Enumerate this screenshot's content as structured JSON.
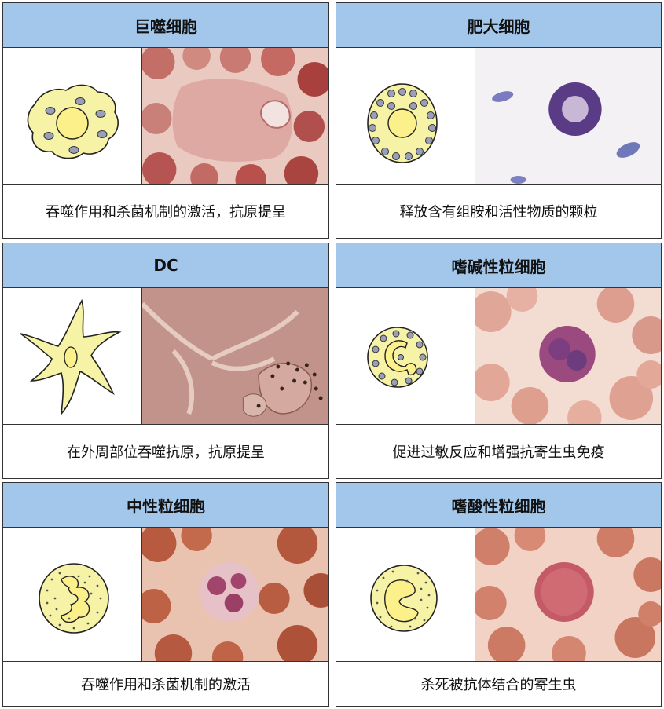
{
  "cells": [
    {
      "title": "巨噬细胞",
      "caption": "吞噬作用和杀菌机制的激活，抗原提呈",
      "diagram_icon": "macrophage-icon"
    },
    {
      "title": "肥大细胞",
      "caption": "释放含有组胺和活性物质的颗粒",
      "diagram_icon": "mast-cell-icon"
    },
    {
      "title": "DC",
      "caption": "在外周部位吞噬抗原，抗原提呈",
      "diagram_icon": "dendritic-cell-icon"
    },
    {
      "title": "嗜碱性粒细胞",
      "caption": "促进过敏反应和增强抗寄生虫免疫",
      "diagram_icon": "basophil-icon"
    },
    {
      "title": "中性粒细胞",
      "caption": "吞噬作用和杀菌机制的激活",
      "diagram_icon": "neutrophil-icon"
    },
    {
      "title": "嗜酸性粒细胞",
      "caption": "杀死被抗体结合的寄生虫",
      "diagram_icon": "eosinophil-icon"
    }
  ],
  "colors": {
    "header": "#a3c7eb",
    "cell_fill": "#f7f3a6",
    "nucleus": "#fbf08a",
    "granule": "#9a9fb8",
    "border": "#333333"
  }
}
